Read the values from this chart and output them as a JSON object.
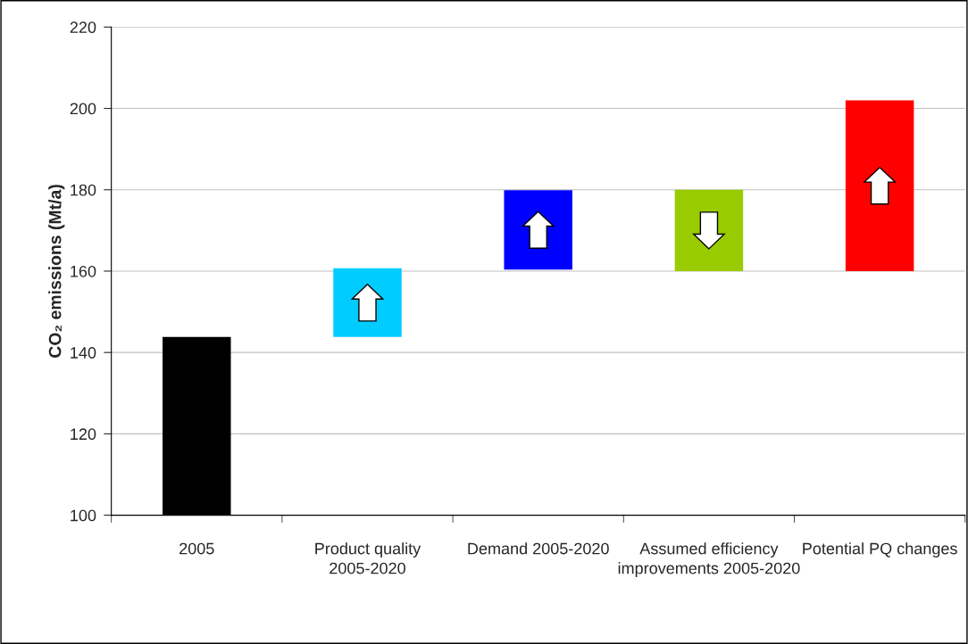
{
  "chart_data": {
    "type": "bar",
    "ylabel": "CO₂ emissions (Mt/a)",
    "categories": [
      "2005",
      "Product quality 2005-2020",
      "Demand 2005-2020",
      "Assumed efficiency improvements 2005-2020",
      "Potential PQ changes"
    ],
    "base": [
      100,
      143.8,
      160.4,
      180,
      160
    ],
    "values": [
      43.8,
      16.9,
      19.5,
      -20,
      42
    ],
    "colors": [
      "#000000",
      "#00ccff",
      "#0000ff",
      "#99cc00",
      "#ff0000"
    ],
    "ylim": [
      100,
      220
    ],
    "yticks": [
      100,
      120,
      140,
      160,
      180,
      200,
      220
    ],
    "grid": "y"
  }
}
